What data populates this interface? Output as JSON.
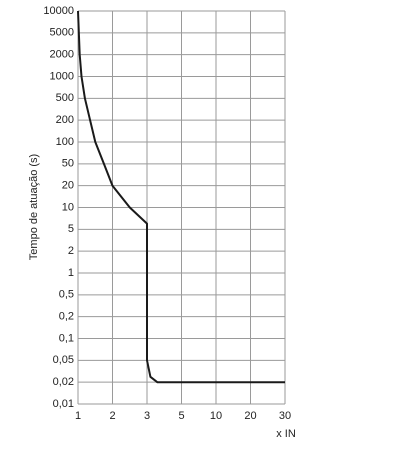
{
  "chart_data": {
    "type": "line",
    "y_label": "Tempo de atuação (s)",
    "x_label": "x IN",
    "xlim": [
      1,
      30
    ],
    "xticks": [
      1,
      2,
      3,
      5,
      10,
      20,
      30
    ],
    "ylim": [
      0.01,
      10000
    ],
    "yticks": [
      10000,
      5000,
      2000,
      1000,
      500,
      200,
      100,
      50,
      20,
      10,
      5,
      2,
      1,
      {
        "value": 0.5,
        "label": "0,5"
      },
      {
        "value": 0.2,
        "label": "0,2"
      },
      {
        "value": 0.1,
        "label": "0,1"
      },
      {
        "value": 0.05,
        "label": "0,05"
      },
      {
        "value": 0.02,
        "label": "0,02"
      },
      {
        "value": 0.01,
        "label": "0,01"
      }
    ],
    "grid": true,
    "series": [
      {
        "color": "#1a1a1a",
        "x": [
          1,
          1.05,
          1.1,
          1.2,
          1.35,
          1.5,
          1.75,
          2,
          2.5,
          3,
          3,
          3.2,
          3.6,
          30
        ],
        "values": [
          10000,
          2000,
          1000,
          500,
          200,
          100,
          50,
          20,
          10,
          6,
          0.05,
          0.025,
          0.02,
          0.02
        ]
      }
    ]
  }
}
